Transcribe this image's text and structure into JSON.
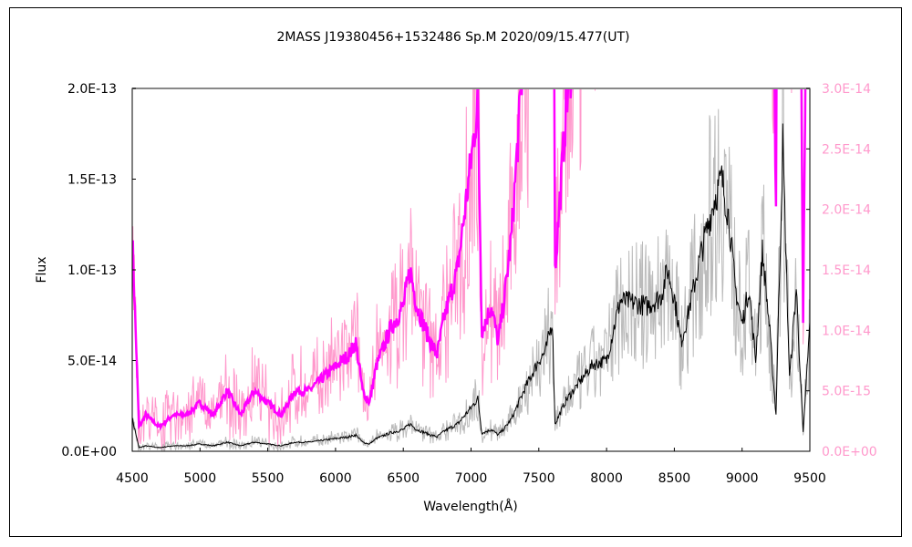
{
  "chart_data": {
    "type": "line",
    "title": "2MASS J19380456+1532486   Sp.M   2020/09/15.477(UT)",
    "xlabel": "Wavelength(Å)",
    "ylabel": "Flux",
    "xlim": [
      4500,
      9500
    ],
    "ylim_left": [
      0,
      2e-13
    ],
    "ylim_right": [
      0,
      3e-14
    ],
    "x_ticks": [
      "4500",
      "5000",
      "5500",
      "6000",
      "6500",
      "7000",
      "7500",
      "8000",
      "8500",
      "9000",
      "9500"
    ],
    "y_ticks_left": [
      "0.0E+00",
      "5.0E-14",
      "1.0E-13",
      "1.5E-13",
      "2.0E-13"
    ],
    "y_ticks_right": [
      "0.0E+00",
      "5.0E-15",
      "1.0E-14",
      "1.5E-14",
      "2.0E-14",
      "2.5E-14",
      "3.0E-14"
    ],
    "grid": false,
    "colors": {
      "left_smoothed": "#000000",
      "left_raw": "#bbbbbb",
      "right_smoothed": "#ff00ff",
      "right_raw": "#ff99cc",
      "right_axis_text": "#ff99cc"
    },
    "series": {
      "x": [
        4500,
        4550,
        4600,
        4700,
        4800,
        4900,
        5000,
        5100,
        5200,
        5300,
        5400,
        5500,
        5600,
        5700,
        5800,
        5900,
        6000,
        6100,
        6150,
        6200,
        6250,
        6300,
        6400,
        6500,
        6550,
        6600,
        6700,
        6750,
        6800,
        6900,
        7000,
        7050,
        7080,
        7150,
        7200,
        7250,
        7300,
        7400,
        7500,
        7550,
        7600,
        7620,
        7700,
        7800,
        7900,
        8000,
        8100,
        8200,
        8300,
        8400,
        8450,
        8500,
        8550,
        8600,
        8700,
        8800,
        8850,
        8900,
        8950,
        9000,
        9050,
        9100,
        9150,
        9200,
        9250,
        9300,
        9350,
        9400,
        9450,
        9500
      ],
      "flux": [
        1.8e-14,
        2e-15,
        3e-15,
        2e-15,
        3e-15,
        3e-15,
        4e-15,
        3e-15,
        5e-15,
        3e-15,
        5e-15,
        4e-15,
        3e-15,
        5e-15,
        5e-15,
        6e-15,
        7e-15,
        8e-15,
        9e-15,
        5e-15,
        4e-15,
        7e-15,
        1e-14,
        1.2e-14,
        1.5e-14,
        1.2e-14,
        9e-15,
        8e-15,
        1.1e-14,
        1.5e-14,
        2.4e-14,
        2.9e-14,
        1e-14,
        1.2e-14,
        9e-15,
        1.3e-14,
        1.8e-14,
        3.5e-14,
        5e-14,
        5.5e-14,
        7.2e-14,
        1.5e-14,
        2.8e-14,
        3.8e-14,
        4.8e-14,
        5e-14,
        8.3e-14,
        8.2e-14,
        8e-14,
        8.5e-14,
        1e-13,
        8.5e-14,
        6e-14,
        7.5e-14,
        1.1e-13,
        1.4e-13,
        1.5e-13,
        1.3e-13,
        9e-14,
        7e-14,
        9e-14,
        5e-14,
        1.1e-13,
        7e-14,
        2e-14,
        1.7e-13,
        4e-14,
        9e-14,
        1e-14,
        7e-14
      ]
    }
  }
}
